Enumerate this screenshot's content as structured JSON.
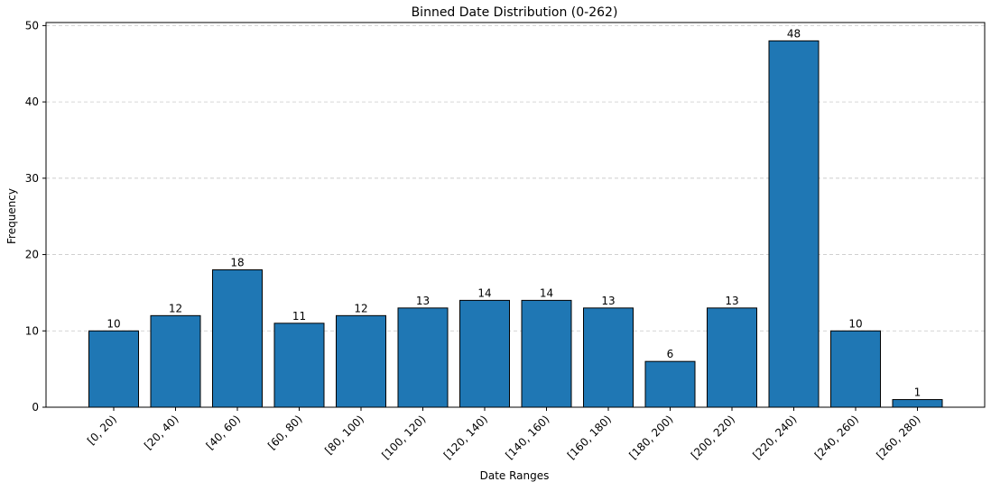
{
  "chart_data": {
    "type": "bar",
    "title": "Binned Date Distribution (0-262)",
    "xlabel": "Date Ranges",
    "ylabel": "Frequency",
    "categories": [
      "[0, 20)",
      "[20, 40)",
      "[40, 60)",
      "[60, 80)",
      "[80, 100)",
      "[100, 120)",
      "[120, 140)",
      "[140, 160)",
      "[160, 180)",
      "[180, 200)",
      "[200, 220)",
      "[220, 240)",
      "[240, 260)",
      "[260, 280)"
    ],
    "values": [
      10,
      12,
      18,
      11,
      12,
      13,
      14,
      14,
      13,
      6,
      13,
      48,
      10,
      1
    ],
    "ylim": [
      0,
      50
    ],
    "yticks": [
      0,
      10,
      20,
      30,
      40,
      50
    ],
    "grid": "y-dashed",
    "bar_color": "#1f77b4",
    "edge_color": "#000000"
  }
}
